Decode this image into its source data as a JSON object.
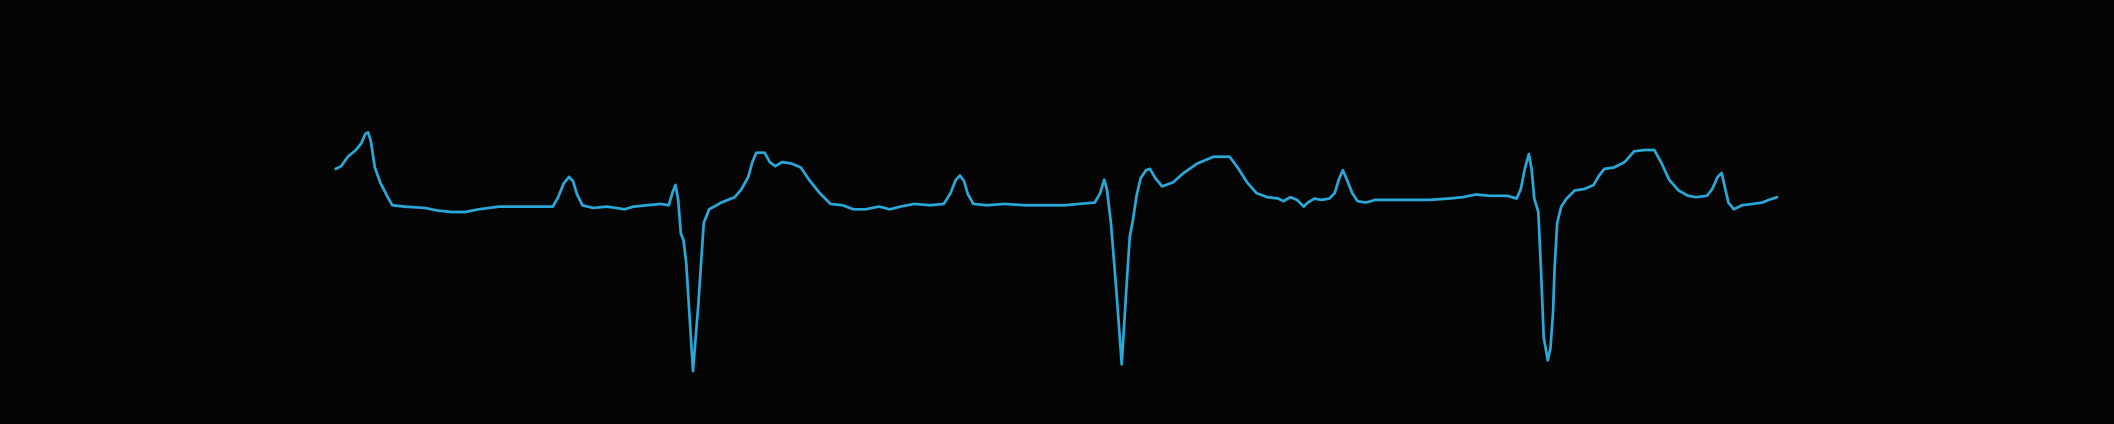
{
  "chart_data": {
    "type": "line",
    "x": [
      249,
      253,
      258,
      264,
      268,
      271,
      273,
      275,
      278,
      282,
      287,
      291,
      300,
      315,
      325,
      335,
      345,
      355,
      370,
      390,
      410,
      414,
      418,
      422,
      425,
      428,
      432,
      440,
      450,
      457,
      463,
      470,
      480,
      490,
      496,
      499,
      501,
      503,
      505,
      507,
      509,
      514,
      518,
      522,
      526,
      535,
      545,
      550,
      555,
      558,
      561,
      567,
      571,
      575,
      580,
      587,
      594,
      600,
      608,
      616,
      625,
      633,
      642,
      652,
      660,
      668,
      678,
      690,
      700,
      705,
      709,
      712,
      715,
      718,
      722,
      732,
      745,
      760,
      775,
      790,
      800,
      812,
      816,
      819,
      821,
      824,
      828,
      832,
      836,
      838,
      840,
      843,
      846,
      850,
      853,
      857,
      862,
      870,
      878,
      888,
      900,
      905,
      912,
      918,
      925,
      932,
      940,
      948,
      952,
      957,
      962,
      967,
      970,
      975,
      980,
      986,
      990,
      993,
      996,
      999,
      1003,
      1007,
      1013,
      1020,
      1030,
      1045,
      1060,
      1075,
      1085,
      1095,
      1105,
      1118,
      1125,
      1128,
      1131,
      1134,
      1136,
      1138,
      1141,
      1143,
      1145,
      1148,
      1150,
      1152,
      1153,
      1155,
      1158,
      1162,
      1168,
      1175,
      1182,
      1186,
      1190,
      1197,
      1205,
      1212,
      1220,
      1227,
      1232,
      1238,
      1245,
      1252,
      1258,
      1266,
      1270,
      1274,
      1277,
      1279,
      1282,
      1286,
      1292,
      1300,
      1307,
      1312,
      1318
    ],
    "series": [
      {
        "color": "#29a9d9",
        "values": [
          28,
          30,
          37,
          42,
          47,
          54,
          55,
          49,
          29,
          18,
          8,
          1,
          0,
          -1,
          -3,
          -4,
          -4,
          -2,
          0,
          0,
          0,
          7,
          17,
          22,
          19,
          9,
          1,
          -1,
          0,
          -1,
          -2,
          0,
          1,
          2,
          1,
          11,
          16,
          5,
          -20,
          -25,
          -42,
          -122,
          -72,
          -12,
          -2,
          3,
          7,
          13,
          22,
          33,
          40,
          40,
          33,
          30,
          33,
          32,
          29,
          20,
          10,
          2,
          1,
          -2,
          -2,
          0,
          -2,
          0,
          2,
          1,
          2,
          10,
          20,
          23,
          19,
          9,
          2,
          1,
          2,
          1,
          1,
          1,
          2,
          3,
          10,
          20,
          13,
          -12,
          -62,
          -117,
          -52,
          -22,
          -12,
          8,
          21,
          27,
          28,
          21,
          15,
          18,
          25,
          32,
          37,
          37,
          37,
          29,
          18,
          10,
          7,
          6,
          4,
          7,
          5,
          0,
          3,
          6,
          5,
          6,
          10,
          20,
          27,
          20,
          10,
          4,
          3,
          5,
          5,
          5,
          5,
          6,
          7,
          9,
          8,
          8,
          6,
          13,
          28,
          39,
          28,
          6,
          -4,
          -47,
          -97,
          -114,
          -105,
          -77,
          -47,
          -12,
          0,
          6,
          12,
          13,
          16,
          23,
          28,
          29,
          33,
          41,
          42,
          42,
          33,
          20,
          12,
          8,
          7,
          8,
          13,
          22,
          25,
          16,
          3,
          -2,
          1,
          2,
          3,
          5,
          7
        ]
      }
    ],
    "xlim": [
      0,
      1568
    ],
    "ylim": [
      -161,
      153
    ]
  }
}
